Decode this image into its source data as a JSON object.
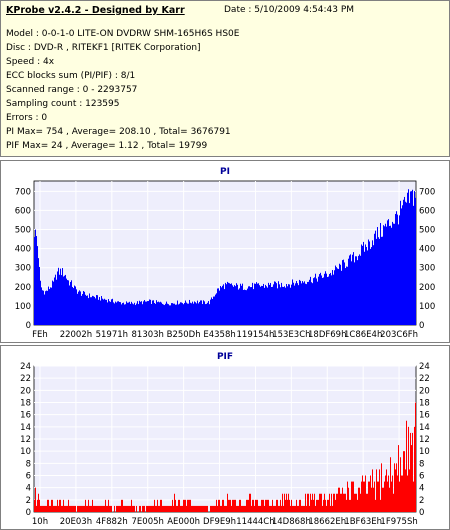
{
  "info": {
    "title": "KProbe v2.4.2 - Designed by Karr",
    "date": "Date : 5/10/2009 4:54:43 PM",
    "lines": [
      "Model : 0-0-1-0 LITE-ON DVDRW SHM-165H6S HS0E",
      "Disc : DVD-R , RITEKF1 [RITEK Corporation]",
      "Speed : 4x",
      "ECC blocks sum (PI/PIF) : 8/1",
      "Scanned range : 0 - 2293757",
      "Sampling count : 123595",
      "Errors : 0",
      "PI Max= 754 , Average= 208.10 , Total= 3676791",
      "PIF Max= 24 , Average= 1.12 , Total= 19799"
    ]
  },
  "colors": {
    "pi": "#0000ff",
    "pif": "#ff0000",
    "plot_bg": "#eeeefc",
    "grid": "#ffffff",
    "title": "#000099"
  },
  "chart_data": [
    {
      "type": "area",
      "title": "PI",
      "xlabel": "",
      "ylabel": "",
      "ylim": [
        0,
        754
      ],
      "yticks": [
        0,
        100,
        200,
        300,
        400,
        500,
        600,
        700
      ],
      "xticks": [
        "FEh",
        "22002h",
        "51971h",
        "81303h",
        "B250Dh",
        "E4358h",
        "119154h",
        "153E3Ch",
        "18DF69h",
        "1C86E4h",
        "203C6Fh"
      ],
      "grid": true,
      "x": [
        0,
        0.5,
        1,
        1.5,
        2,
        3,
        5,
        6,
        7,
        8,
        9,
        10,
        11,
        12,
        14,
        16,
        18,
        20,
        22,
        24,
        26,
        28,
        30,
        32,
        34,
        36,
        38,
        40,
        42,
        44,
        46,
        48,
        50,
        52,
        54,
        56,
        58,
        60,
        62,
        64,
        66,
        68,
        70,
        72,
        74,
        76,
        78,
        80,
        82,
        84,
        85,
        86,
        87,
        88,
        89,
        90,
        91,
        92,
        93,
        94,
        95,
        96,
        97,
        98,
        99,
        100
      ],
      "values": [
        540,
        510,
        420,
        250,
        200,
        190,
        240,
        300,
        310,
        290,
        250,
        230,
        200,
        185,
        170,
        160,
        150,
        140,
        130,
        125,
        125,
        130,
        135,
        130,
        125,
        125,
        130,
        130,
        135,
        130,
        130,
        200,
        230,
        225,
        220,
        220,
        225,
        225,
        230,
        230,
        235,
        240,
        250,
        260,
        270,
        285,
        300,
        330,
        360,
        390,
        410,
        430,
        450,
        470,
        500,
        520,
        540,
        560,
        580,
        600,
        620,
        650,
        680,
        710,
        740,
        754
      ]
    },
    {
      "type": "bar",
      "title": "PIF",
      "xlabel": "",
      "ylabel": "",
      "ylim": [
        0,
        24
      ],
      "yticks": [
        0,
        2,
        4,
        6,
        8,
        10,
        12,
        14,
        16,
        18,
        20,
        22,
        24
      ],
      "xticks": [
        "10h",
        "20E03h",
        "4F882h",
        "7E005h",
        "AE000h",
        "DF9E9h",
        "11444Ch",
        "14D868h",
        "18662Eh",
        "1BF63Eh",
        "1F975Sh"
      ],
      "grid": true,
      "x": [
        0,
        0.5,
        1,
        3,
        5,
        7,
        9,
        11,
        13,
        15,
        17,
        19,
        21,
        23,
        25,
        27,
        29,
        31,
        33,
        35,
        37,
        39,
        41,
        43,
        45,
        47,
        49,
        51,
        53,
        55,
        57,
        59,
        61,
        63,
        65,
        67,
        69,
        71,
        73,
        75,
        77,
        79,
        81,
        83,
        85,
        86,
        87,
        88,
        89,
        90,
        91,
        92,
        93,
        94,
        95,
        96,
        97,
        98,
        98.5,
        99,
        99.5,
        100
      ],
      "values": [
        5,
        4,
        3,
        2,
        3,
        2,
        2,
        1,
        2,
        2,
        1,
        2,
        1,
        2,
        2,
        1,
        1,
        2,
        2,
        1,
        3,
        2,
        2,
        2,
        1,
        2,
        2,
        3,
        2,
        2,
        3,
        2,
        3,
        2,
        3,
        3,
        2,
        3,
        4,
        3,
        4,
        4,
        5,
        6,
        5,
        6,
        7,
        6,
        8,
        7,
        9,
        8,
        10,
        9,
        11,
        12,
        14,
        18,
        24,
        20,
        16,
        22
      ]
    }
  ]
}
